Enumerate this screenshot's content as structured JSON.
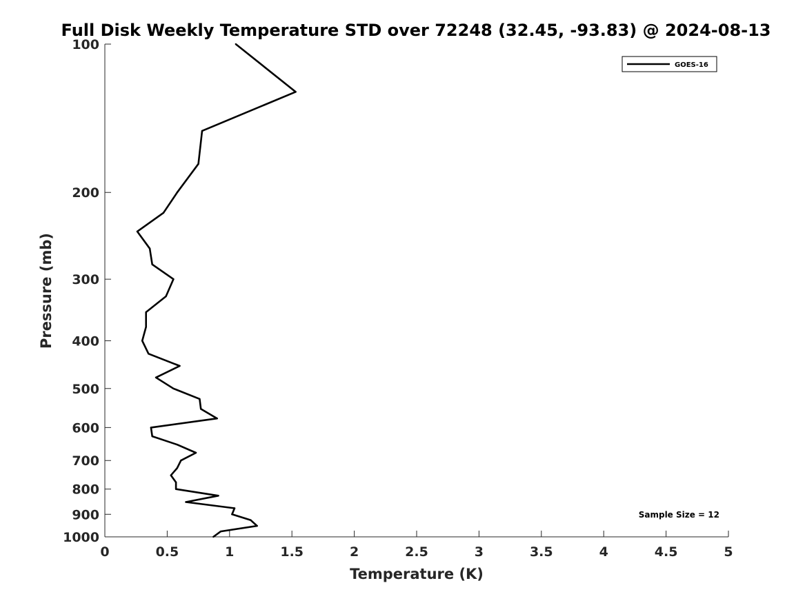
{
  "chart_data": {
    "type": "line",
    "title": "Full Disk Weekly Temperature STD over 72248 (32.45, -93.83) @ 2024-08-13",
    "xlabel": "Temperature (K)",
    "ylabel": "Pressure (mb)",
    "xlim": [
      0,
      5
    ],
    "ylim": [
      100,
      1000
    ],
    "y_scale": "log",
    "y_reversed": true,
    "x_ticks": [
      "0",
      "0.5",
      "1",
      "1.5",
      "2",
      "2.5",
      "3",
      "3.5",
      "4",
      "4.5",
      "5"
    ],
    "y_ticks": [
      "100",
      "200",
      "300",
      "400",
      "500",
      "600",
      "700",
      "800",
      "900",
      "1000"
    ],
    "legend_placement": "top-right",
    "grid": false,
    "annotation": "Sample Size = 12",
    "series": [
      {
        "name": "GOES-16",
        "color": "#000000",
        "points": [
          {
            "x": 1.05,
            "y": 100
          },
          {
            "x": 1.53,
            "y": 125
          },
          {
            "x": 0.78,
            "y": 150
          },
          {
            "x": 0.75,
            "y": 175
          },
          {
            "x": 0.58,
            "y": 200
          },
          {
            "x": 0.47,
            "y": 220
          },
          {
            "x": 0.26,
            "y": 240
          },
          {
            "x": 0.36,
            "y": 260
          },
          {
            "x": 0.38,
            "y": 280
          },
          {
            "x": 0.55,
            "y": 300
          },
          {
            "x": 0.49,
            "y": 325
          },
          {
            "x": 0.33,
            "y": 350
          },
          {
            "x": 0.33,
            "y": 375
          },
          {
            "x": 0.3,
            "y": 400
          },
          {
            "x": 0.35,
            "y": 425
          },
          {
            "x": 0.6,
            "y": 450
          },
          {
            "x": 0.41,
            "y": 475
          },
          {
            "x": 0.55,
            "y": 500
          },
          {
            "x": 0.76,
            "y": 525
          },
          {
            "x": 0.77,
            "y": 550
          },
          {
            "x": 0.9,
            "y": 575
          },
          {
            "x": 0.37,
            "y": 600
          },
          {
            "x": 0.38,
            "y": 625
          },
          {
            "x": 0.58,
            "y": 650
          },
          {
            "x": 0.73,
            "y": 675
          },
          {
            "x": 0.61,
            "y": 700
          },
          {
            "x": 0.58,
            "y": 725
          },
          {
            "x": 0.53,
            "y": 750
          },
          {
            "x": 0.57,
            "y": 775
          },
          {
            "x": 0.57,
            "y": 800
          },
          {
            "x": 0.91,
            "y": 825
          },
          {
            "x": 0.65,
            "y": 850
          },
          {
            "x": 1.04,
            "y": 875
          },
          {
            "x": 1.02,
            "y": 900
          },
          {
            "x": 1.17,
            "y": 925
          },
          {
            "x": 1.22,
            "y": 950
          },
          {
            "x": 0.93,
            "y": 975
          },
          {
            "x": 0.87,
            "y": 1000
          }
        ]
      }
    ]
  }
}
